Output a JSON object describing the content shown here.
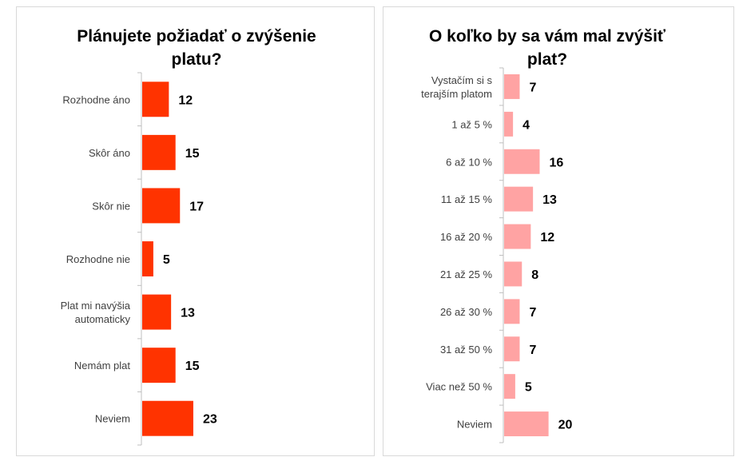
{
  "chart_data": [
    {
      "type": "bar",
      "orientation": "horizontal",
      "title": "Plánujete požiadať o zvýšenie platu?",
      "categories": [
        "Rozhodne áno",
        "Skôr áno",
        "Skôr nie",
        "Rozhodne nie",
        "Plat mi navýšia automaticky",
        "Nemám plat",
        "Neviem"
      ],
      "values": [
        12,
        15,
        17,
        5,
        13,
        15,
        23
      ],
      "data_labels": true,
      "bar_color": "#ff3300",
      "gridlines": false
    },
    {
      "type": "bar",
      "orientation": "horizontal",
      "title": "O koľko by sa vám mal zvýšiť plat?",
      "categories": [
        "Vystačím si s terajším platom",
        "1 až 5 %",
        "6 až 10 %",
        "11 až 15 %",
        "16 až 20 %",
        "21 až 25 %",
        "26 až 30 %",
        "31 až 50 %",
        "Viac než 50 %",
        "Neviem"
      ],
      "values": [
        7,
        4,
        16,
        13,
        12,
        8,
        7,
        7,
        5,
        20
      ],
      "data_labels": true,
      "bar_color": "#ffa3a3",
      "gridlines": false
    }
  ]
}
